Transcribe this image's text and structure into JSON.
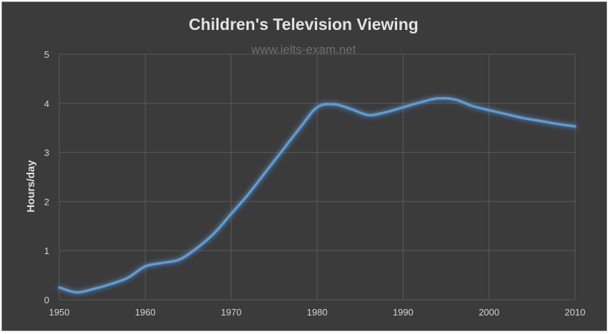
{
  "watermark": "www.ielts-exam.net",
  "chart_data": {
    "type": "line",
    "title": "Children's Television Viewing",
    "xlabel": "",
    "ylabel": "Hours/day",
    "xlim": [
      1950,
      2010
    ],
    "ylim": [
      0,
      5
    ],
    "x_ticks": [
      "1950",
      "1960",
      "1970",
      "1980",
      "1990",
      "2000",
      "2010"
    ],
    "y_ticks": [
      "0",
      "1",
      "2",
      "3",
      "4",
      "5"
    ],
    "grid": true,
    "line_color": "#5b9bd5",
    "series": [
      {
        "x": [
          1950,
          1952,
          1954,
          1956,
          1958,
          1960,
          1962,
          1964,
          1966,
          1968,
          1970,
          1972,
          1974,
          1976,
          1978,
          1980,
          1982,
          1984,
          1986,
          1988,
          1990,
          1992,
          1994,
          1996,
          1998,
          2000,
          2002,
          2004,
          2006,
          2008,
          2010
        ],
        "values": [
          0.25,
          0.15,
          0.22,
          0.32,
          0.45,
          0.68,
          0.75,
          0.82,
          1.05,
          1.35,
          1.75,
          2.15,
          2.6,
          3.05,
          3.5,
          3.92,
          3.98,
          3.88,
          3.76,
          3.82,
          3.92,
          4.02,
          4.1,
          4.08,
          3.95,
          3.86,
          3.78,
          3.7,
          3.64,
          3.58,
          3.53
        ]
      }
    ]
  }
}
